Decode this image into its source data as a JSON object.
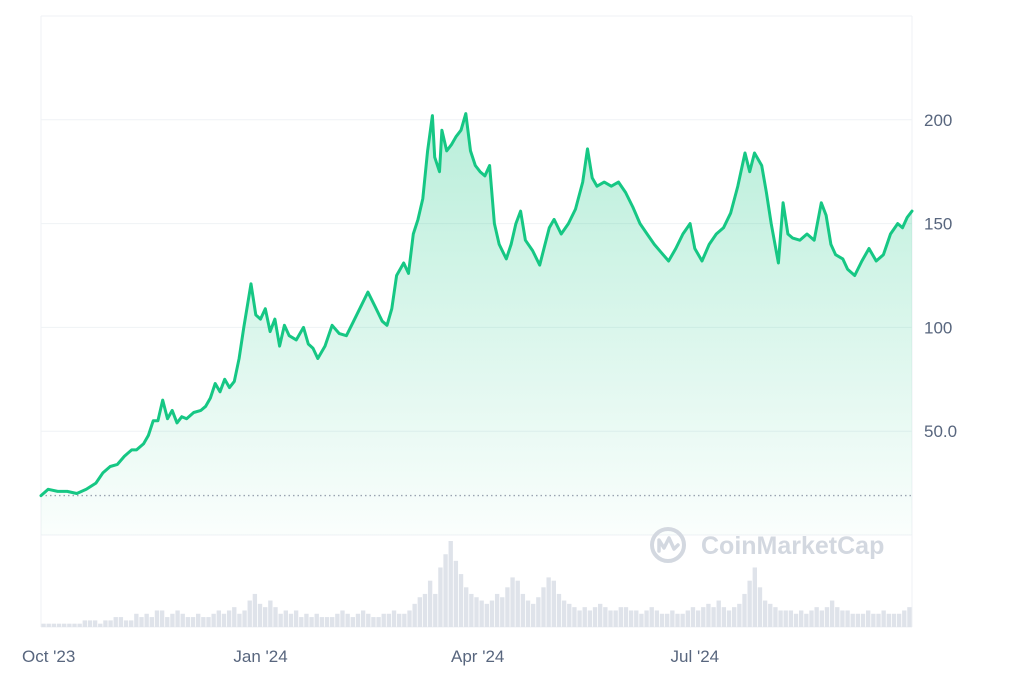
{
  "watermark": {
    "text": "CoinMarketCap",
    "icon": "coinmarketcap-logo-icon"
  },
  "colors": {
    "line": "#16c784",
    "grid": "#eff2f5",
    "axis_text": "#58667e",
    "volume": "#dfe3ea",
    "baseline": "#9aa3b1"
  },
  "chart_data": {
    "type": "area",
    "title": "",
    "xlabel": "",
    "ylabel": "",
    "grid": true,
    "y_axis_position": "right",
    "ylim": [
      0,
      250
    ],
    "y_ticks": [
      {
        "value": 200,
        "label": "200"
      },
      {
        "value": 150,
        "label": "150"
      },
      {
        "value": 100,
        "label": "100"
      },
      {
        "value": 50,
        "label": "50.0"
      }
    ],
    "x_ticks": [
      {
        "date": "2023-10-01",
        "label": "Oct '23"
      },
      {
        "date": "2024-01-01",
        "label": "Jan '24"
      },
      {
        "date": "2024-04-01",
        "label": "Apr '24"
      },
      {
        "date": "2024-07-01",
        "label": "Jul '24"
      }
    ],
    "x_range": [
      "2023-10-01",
      "2024-09-30"
    ],
    "baseline": 19,
    "series": [
      {
        "points": [
          [
            "2023-10-01",
            19
          ],
          [
            "2023-10-04",
            22
          ],
          [
            "2023-10-08",
            21
          ],
          [
            "2023-10-12",
            21
          ],
          [
            "2023-10-16",
            20
          ],
          [
            "2023-10-20",
            22
          ],
          [
            "2023-10-24",
            25
          ],
          [
            "2023-10-27",
            30
          ],
          [
            "2023-10-30",
            33
          ],
          [
            "2023-11-02",
            34
          ],
          [
            "2023-11-05",
            38
          ],
          [
            "2023-11-08",
            41
          ],
          [
            "2023-11-10",
            41
          ],
          [
            "2023-11-13",
            44
          ],
          [
            "2023-11-15",
            48
          ],
          [
            "2023-11-17",
            55
          ],
          [
            "2023-11-19",
            55
          ],
          [
            "2023-11-21",
            65
          ],
          [
            "2023-11-23",
            56
          ],
          [
            "2023-11-25",
            60
          ],
          [
            "2023-11-27",
            54
          ],
          [
            "2023-11-29",
            57
          ],
          [
            "2023-12-01",
            56
          ],
          [
            "2023-12-04",
            59
          ],
          [
            "2023-12-07",
            60
          ],
          [
            "2023-12-09",
            62
          ],
          [
            "2023-12-11",
            66
          ],
          [
            "2023-12-13",
            73
          ],
          [
            "2023-12-15",
            69
          ],
          [
            "2023-12-17",
            75
          ],
          [
            "2023-12-19",
            71
          ],
          [
            "2023-12-21",
            74
          ],
          [
            "2023-12-23",
            85
          ],
          [
            "2023-12-25",
            100
          ],
          [
            "2023-12-28",
            121
          ],
          [
            "2023-12-30",
            106
          ],
          [
            "2024-01-01",
            104
          ],
          [
            "2024-01-03",
            109
          ],
          [
            "2024-01-05",
            98
          ],
          [
            "2024-01-07",
            104
          ],
          [
            "2024-01-09",
            91
          ],
          [
            "2024-01-11",
            101
          ],
          [
            "2024-01-13",
            96
          ],
          [
            "2024-01-16",
            94
          ],
          [
            "2024-01-19",
            100
          ],
          [
            "2024-01-21",
            92
          ],
          [
            "2024-01-23",
            90
          ],
          [
            "2024-01-25",
            85
          ],
          [
            "2024-01-28",
            91
          ],
          [
            "2024-01-31",
            101
          ],
          [
            "2024-02-03",
            97
          ],
          [
            "2024-02-06",
            96
          ],
          [
            "2024-02-09",
            103
          ],
          [
            "2024-02-12",
            110
          ],
          [
            "2024-02-15",
            117
          ],
          [
            "2024-02-18",
            110
          ],
          [
            "2024-02-21",
            103
          ],
          [
            "2024-02-23",
            101
          ],
          [
            "2024-02-25",
            109
          ],
          [
            "2024-02-27",
            125
          ],
          [
            "2024-03-01",
            131
          ],
          [
            "2024-03-03",
            126
          ],
          [
            "2024-03-05",
            145
          ],
          [
            "2024-03-07",
            152
          ],
          [
            "2024-03-09",
            162
          ],
          [
            "2024-03-11",
            185
          ],
          [
            "2024-03-13",
            202
          ],
          [
            "2024-03-14",
            182
          ],
          [
            "2024-03-16",
            175
          ],
          [
            "2024-03-17",
            195
          ],
          [
            "2024-03-19",
            185
          ],
          [
            "2024-03-21",
            188
          ],
          [
            "2024-03-23",
            192
          ],
          [
            "2024-03-25",
            195
          ],
          [
            "2024-03-27",
            203
          ],
          [
            "2024-03-29",
            185
          ],
          [
            "2024-03-31",
            178
          ],
          [
            "2024-04-02",
            175
          ],
          [
            "2024-04-04",
            173
          ],
          [
            "2024-04-06",
            178
          ],
          [
            "2024-04-08",
            150
          ],
          [
            "2024-04-10",
            140
          ],
          [
            "2024-04-13",
            133
          ],
          [
            "2024-04-15",
            140
          ],
          [
            "2024-04-17",
            150
          ],
          [
            "2024-04-19",
            156
          ],
          [
            "2024-04-21",
            142
          ],
          [
            "2024-04-24",
            137
          ],
          [
            "2024-04-27",
            130
          ],
          [
            "2024-04-29",
            139
          ],
          [
            "2024-05-01",
            148
          ],
          [
            "2024-05-03",
            152
          ],
          [
            "2024-05-06",
            145
          ],
          [
            "2024-05-09",
            150
          ],
          [
            "2024-05-12",
            157
          ],
          [
            "2024-05-15",
            170
          ],
          [
            "2024-05-17",
            186
          ],
          [
            "2024-05-19",
            172
          ],
          [
            "2024-05-21",
            168
          ],
          [
            "2024-05-24",
            170
          ],
          [
            "2024-05-27",
            168
          ],
          [
            "2024-05-30",
            170
          ],
          [
            "2024-06-02",
            165
          ],
          [
            "2024-06-05",
            158
          ],
          [
            "2024-06-08",
            150
          ],
          [
            "2024-06-11",
            145
          ],
          [
            "2024-06-14",
            140
          ],
          [
            "2024-06-17",
            136
          ],
          [
            "2024-06-20",
            132
          ],
          [
            "2024-06-23",
            138
          ],
          [
            "2024-06-26",
            145
          ],
          [
            "2024-06-29",
            150
          ],
          [
            "2024-07-01",
            138
          ],
          [
            "2024-07-04",
            132
          ],
          [
            "2024-07-07",
            140
          ],
          [
            "2024-07-10",
            145
          ],
          [
            "2024-07-13",
            148
          ],
          [
            "2024-07-16",
            155
          ],
          [
            "2024-07-19",
            168
          ],
          [
            "2024-07-22",
            184
          ],
          [
            "2024-07-24",
            175
          ],
          [
            "2024-07-26",
            184
          ],
          [
            "2024-07-29",
            178
          ],
          [
            "2024-07-31",
            165
          ],
          [
            "2024-08-02",
            150
          ],
          [
            "2024-08-05",
            131
          ],
          [
            "2024-08-07",
            160
          ],
          [
            "2024-08-09",
            145
          ],
          [
            "2024-08-11",
            143
          ],
          [
            "2024-08-14",
            142
          ],
          [
            "2024-08-17",
            145
          ],
          [
            "2024-08-20",
            142
          ],
          [
            "2024-08-23",
            160
          ],
          [
            "2024-08-25",
            154
          ],
          [
            "2024-08-27",
            140
          ],
          [
            "2024-08-29",
            135
          ],
          [
            "2024-09-01",
            133
          ],
          [
            "2024-09-03",
            128
          ],
          [
            "2024-09-06",
            125
          ],
          [
            "2024-09-09",
            132
          ],
          [
            "2024-09-12",
            138
          ],
          [
            "2024-09-15",
            132
          ],
          [
            "2024-09-18",
            135
          ],
          [
            "2024-09-21",
            145
          ],
          [
            "2024-09-24",
            150
          ],
          [
            "2024-09-26",
            148
          ],
          [
            "2024-09-28",
            153
          ],
          [
            "2024-09-30",
            156
          ]
        ]
      }
    ],
    "volume": {
      "scale": "relative",
      "values": [
        1,
        1,
        1,
        1,
        1,
        1,
        1,
        1,
        2,
        2,
        2,
        1,
        2,
        2,
        3,
        3,
        2,
        2,
        4,
        3,
        4,
        3,
        5,
        5,
        3,
        4,
        5,
        4,
        3,
        3,
        4,
        3,
        3,
        4,
        5,
        4,
        5,
        6,
        4,
        5,
        8,
        10,
        7,
        6,
        8,
        6,
        4,
        5,
        4,
        5,
        3,
        4,
        3,
        4,
        3,
        3,
        3,
        4,
        5,
        4,
        3,
        4,
        5,
        4,
        3,
        3,
        4,
        4,
        5,
        4,
        4,
        5,
        7,
        9,
        10,
        14,
        10,
        18,
        22,
        26,
        20,
        16,
        12,
        10,
        9,
        8,
        7,
        8,
        10,
        9,
        12,
        15,
        14,
        10,
        8,
        7,
        9,
        12,
        15,
        14,
        10,
        8,
        7,
        6,
        5,
        6,
        5,
        6,
        7,
        6,
        5,
        5,
        6,
        6,
        5,
        5,
        4,
        5,
        6,
        5,
        4,
        4,
        5,
        4,
        4,
        5,
        6,
        5,
        6,
        7,
        6,
        8,
        6,
        5,
        6,
        7,
        10,
        14,
        18,
        12,
        8,
        7,
        6,
        5,
        5,
        5,
        4,
        5,
        4,
        5,
        6,
        5,
        6,
        8,
        6,
        5,
        5,
        4,
        4,
        4,
        5,
        4,
        4,
        5,
        4,
        4,
        4,
        5,
        6
      ]
    }
  }
}
